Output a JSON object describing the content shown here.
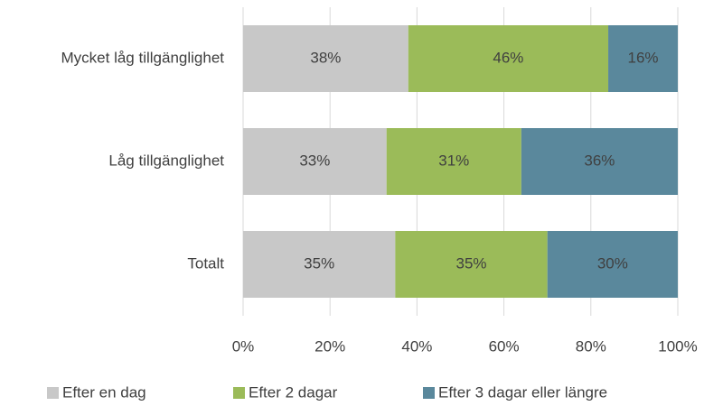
{
  "chart_data": {
    "type": "stacked-barh",
    "categories": [
      "Mycket låg tillgänglighet",
      "Låg tillgänglighet",
      "Totalt"
    ],
    "series": [
      {
        "name": "Efter en dag",
        "color": "#c8c8c8",
        "values": [
          38,
          33,
          35
        ],
        "value_labels": [
          "38%",
          "33%",
          "35%"
        ]
      },
      {
        "name": "Efter 2 dagar",
        "color": "#9bbb59",
        "values": [
          46,
          31,
          35
        ],
        "value_labels": [
          "46%",
          "31%",
          "35%"
        ]
      },
      {
        "name": "Efter 3 dagar eller längre",
        "color": "#5a889c",
        "values": [
          16,
          36,
          30
        ],
        "value_labels": [
          "16%",
          "36%",
          "30%"
        ]
      }
    ],
    "xlim": [
      0,
      100
    ],
    "xticks": [
      {
        "value": 0,
        "label": "0%"
      },
      {
        "value": 20,
        "label": "20%"
      },
      {
        "value": 40,
        "label": "40%"
      },
      {
        "value": 60,
        "label": "60%"
      },
      {
        "value": 80,
        "label": "80%"
      },
      {
        "value": 100,
        "label": "100%"
      }
    ],
    "grid": true,
    "legend": "bottom"
  }
}
